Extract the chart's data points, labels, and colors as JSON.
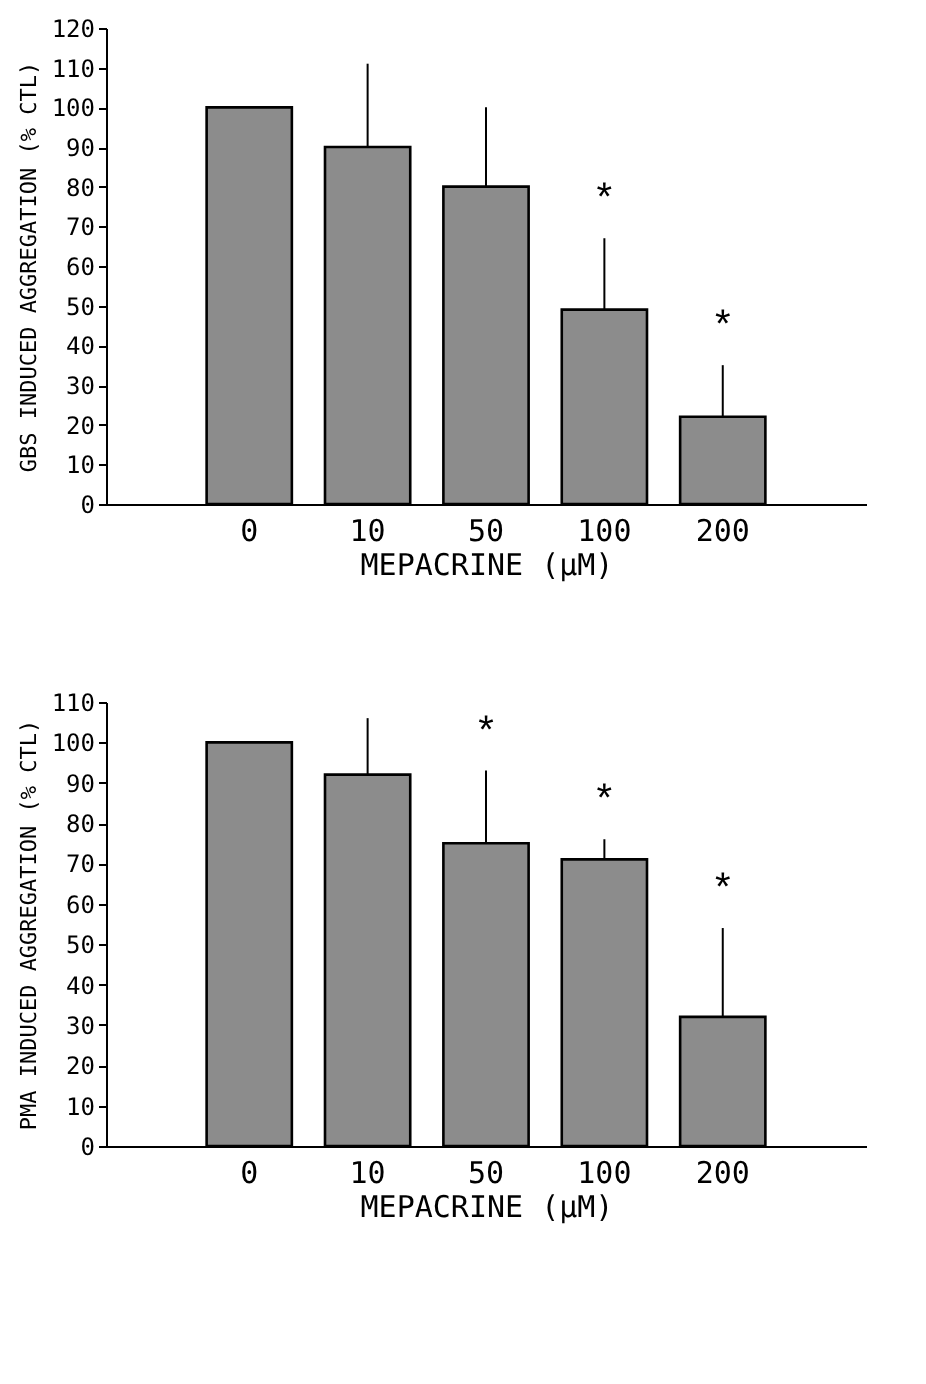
{
  "chart_data": [
    {
      "type": "bar",
      "ylabel": "GBS INDUCED AGGREGATION (% CTL)",
      "xlabel": "MEPACRINE (μM)",
      "categories": [
        "0",
        "10",
        "50",
        "100",
        "200"
      ],
      "values": [
        100,
        90,
        80,
        49,
        22
      ],
      "color": "#8c8c8c",
      "errors": [
        null,
        [
          90,
          111
        ],
        [
          80,
          100
        ],
        [
          49,
          67
        ],
        [
          22,
          35
        ]
      ],
      "ylim": [
        0,
        120
      ],
      "yticks": [
        0,
        10,
        20,
        30,
        40,
        50,
        60,
        70,
        80,
        90,
        100,
        110,
        120
      ],
      "grid": false,
      "annotations": [
        {
          "text": "*",
          "x": "100",
          "y": 67
        },
        {
          "text": "*",
          "x": "200",
          "y": 35
        }
      ]
    },
    {
      "type": "bar",
      "ylabel": "PMA INDUCED AGGREGATION (% CTL)",
      "xlabel": "MEPACRINE (μM)",
      "categories": [
        "0",
        "10",
        "50",
        "100",
        "200"
      ],
      "values": [
        100,
        92,
        75,
        71,
        32
      ],
      "color": "#8c8c8c",
      "errors": [
        null,
        [
          92,
          106
        ],
        [
          75,
          93
        ],
        [
          71,
          76
        ],
        [
          32,
          54
        ]
      ],
      "ylim": [
        0,
        110
      ],
      "yticks": [
        0,
        10,
        20,
        30,
        40,
        50,
        60,
        70,
        80,
        90,
        100,
        110
      ],
      "grid": false,
      "annotations": [
        {
          "text": "*",
          "x": "50",
          "y": 93
        },
        {
          "text": "*",
          "x": "100",
          "y": 76
        },
        {
          "text": "*",
          "x": "200",
          "y": 54
        }
      ]
    }
  ]
}
